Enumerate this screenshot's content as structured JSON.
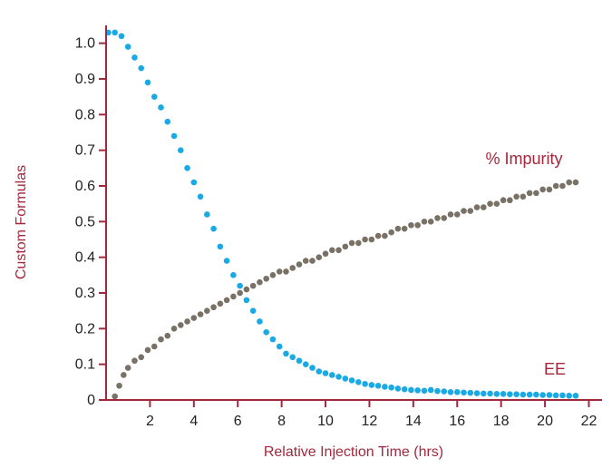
{
  "chart_data": {
    "type": "scatter",
    "title": "",
    "xlabel": "Relative Injection Time (hrs)",
    "ylabel": "Custom Formulas",
    "xlim": [
      0,
      22.6
    ],
    "ylim": [
      0,
      1.05
    ],
    "xticks": [
      2,
      4,
      6,
      8,
      10,
      12,
      14,
      16,
      18,
      20,
      22
    ],
    "yticks": [
      0,
      0.1,
      0.2,
      0.3,
      0.4,
      0.5,
      0.6,
      0.7,
      0.8,
      0.9,
      1.0
    ],
    "xtick_labels": [
      "2",
      "4",
      "6",
      "8",
      "10",
      "12",
      "14",
      "16",
      "18",
      "20",
      "22"
    ],
    "ytick_labels": [
      "0",
      "0.1",
      "0.2",
      "0.3",
      "0.4",
      "0.5",
      "0.6",
      "0.7",
      "0.8",
      "0.9",
      "1.0"
    ],
    "grid": false,
    "axis_color": "#a3283c",
    "series": [
      {
        "name": "EE",
        "color": "#19a9e5",
        "x": [
          0.1,
          0.4,
          0.7,
          1.0,
          1.3,
          1.6,
          1.9,
          2.2,
          2.5,
          2.8,
          3.1,
          3.4,
          3.7,
          4.0,
          4.3,
          4.6,
          4.9,
          5.2,
          5.5,
          5.8,
          6.1,
          6.4,
          6.7,
          7.0,
          7.3,
          7.6,
          7.9,
          8.2,
          8.5,
          8.8,
          9.1,
          9.4,
          9.7,
          10.0,
          10.3,
          10.6,
          10.9,
          11.2,
          11.5,
          11.8,
          12.1,
          12.4,
          12.7,
          13.0,
          13.3,
          13.6,
          13.9,
          14.2,
          14.5,
          14.8,
          15.1,
          15.4,
          15.7,
          16.0,
          16.3,
          16.6,
          16.9,
          17.2,
          17.5,
          17.8,
          18.1,
          18.4,
          18.7,
          19.0,
          19.3,
          19.6,
          19.9,
          20.2,
          20.5,
          20.8,
          21.1,
          21.4
        ],
        "y": [
          1.03,
          1.03,
          1.02,
          0.99,
          0.96,
          0.93,
          0.89,
          0.85,
          0.82,
          0.78,
          0.74,
          0.7,
          0.65,
          0.61,
          0.57,
          0.52,
          0.48,
          0.43,
          0.39,
          0.35,
          0.32,
          0.28,
          0.25,
          0.22,
          0.19,
          0.17,
          0.15,
          0.13,
          0.12,
          0.11,
          0.1,
          0.09,
          0.08,
          0.075,
          0.07,
          0.065,
          0.06,
          0.055,
          0.05,
          0.045,
          0.042,
          0.04,
          0.037,
          0.035,
          0.032,
          0.03,
          0.028,
          0.027,
          0.026,
          0.028,
          0.025,
          0.024,
          0.022,
          0.022,
          0.021,
          0.02,
          0.019,
          0.018,
          0.018,
          0.017,
          0.017,
          0.016,
          0.016,
          0.015,
          0.015,
          0.015,
          0.014,
          0.014,
          0.013,
          0.013,
          0.012,
          0.012
        ]
      },
      {
        "name": "% Impurity",
        "color": "#7a7166",
        "x": [
          0.4,
          0.6,
          0.8,
          1.0,
          1.3,
          1.6,
          1.9,
          2.2,
          2.5,
          2.8,
          3.1,
          3.4,
          3.7,
          4.0,
          4.3,
          4.6,
          4.9,
          5.2,
          5.5,
          5.8,
          6.1,
          6.4,
          6.7,
          7.0,
          7.3,
          7.6,
          7.9,
          8.2,
          8.5,
          8.8,
          9.1,
          9.4,
          9.7,
          10.0,
          10.3,
          10.6,
          10.9,
          11.2,
          11.5,
          11.8,
          12.1,
          12.4,
          12.7,
          13.0,
          13.3,
          13.6,
          13.9,
          14.2,
          14.5,
          14.8,
          15.1,
          15.4,
          15.7,
          16.0,
          16.3,
          16.6,
          16.9,
          17.2,
          17.5,
          17.8,
          18.1,
          18.4,
          18.7,
          19.0,
          19.3,
          19.6,
          19.9,
          20.2,
          20.5,
          20.8,
          21.1,
          21.4
        ],
        "y": [
          0.01,
          0.04,
          0.07,
          0.09,
          0.11,
          0.12,
          0.14,
          0.15,
          0.17,
          0.18,
          0.2,
          0.21,
          0.22,
          0.23,
          0.24,
          0.25,
          0.26,
          0.27,
          0.28,
          0.29,
          0.3,
          0.31,
          0.32,
          0.33,
          0.34,
          0.35,
          0.36,
          0.36,
          0.37,
          0.38,
          0.39,
          0.39,
          0.4,
          0.41,
          0.42,
          0.42,
          0.43,
          0.44,
          0.44,
          0.45,
          0.45,
          0.46,
          0.46,
          0.47,
          0.48,
          0.48,
          0.49,
          0.49,
          0.5,
          0.5,
          0.51,
          0.51,
          0.52,
          0.52,
          0.53,
          0.53,
          0.54,
          0.54,
          0.55,
          0.55,
          0.56,
          0.56,
          0.57,
          0.57,
          0.58,
          0.58,
          0.59,
          0.59,
          0.6,
          0.6,
          0.61,
          0.61
        ]
      }
    ]
  }
}
